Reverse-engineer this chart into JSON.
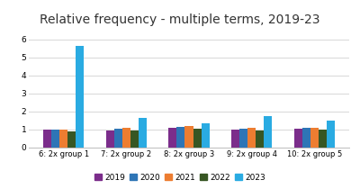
{
  "title": "Relative frequency - multiple terms, 2019-23",
  "groups": [
    "6: 2x group 1",
    "7: 2x group 2",
    "8: 2x group 3",
    "9: 2x group 4",
    "10: 2x group 5"
  ],
  "years": [
    "2019",
    "2020",
    "2021",
    "2022",
    "2023"
  ],
  "values": [
    [
      1.0,
      1.0,
      1.0,
      0.9,
      5.65
    ],
    [
      0.95,
      1.05,
      1.07,
      0.95,
      1.65
    ],
    [
      1.07,
      1.15,
      1.18,
      1.05,
      1.33
    ],
    [
      0.97,
      1.05,
      1.08,
      0.95,
      1.75
    ],
    [
      1.02,
      1.07,
      1.08,
      0.98,
      1.47
    ]
  ],
  "colors": [
    "#7B2D8B",
    "#2E75B6",
    "#ED7D31",
    "#375623",
    "#2AABE2"
  ],
  "ylim": [
    0,
    6.3
  ],
  "yticks": [
    0,
    1,
    2,
    3,
    4,
    5,
    6
  ],
  "bar_width": 0.13,
  "background_color": "#ffffff",
  "grid_color": "#d8d8d8",
  "title_fontsize": 10
}
